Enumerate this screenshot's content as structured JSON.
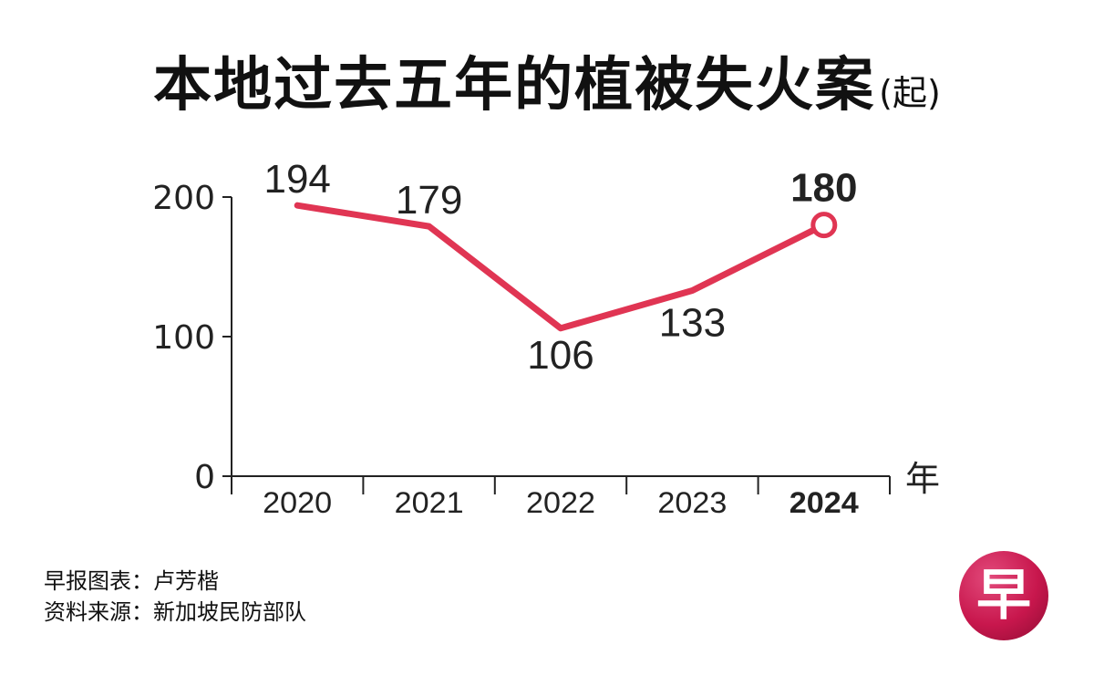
{
  "title": "本地过去五年的植被失火案",
  "title_unit": "(起)",
  "credits": {
    "chart_by": "早报图表：卢芳楷",
    "source": "资料来源：新加坡民防部队"
  },
  "logo": {
    "char": "早",
    "color": "#c8174d"
  },
  "colors": {
    "line": "#e03553",
    "axis": "#222222",
    "text": "#222222"
  },
  "chart_data": {
    "type": "line",
    "title": "本地过去五年的植被失火案",
    "xlabel": "年",
    "ylabel": "",
    "categories": [
      "2020",
      "2021",
      "2022",
      "2023",
      "2024"
    ],
    "series": [
      {
        "values": [
          194,
          179,
          106,
          133,
          180
        ],
        "labels": [
          "194",
          "179",
          "106",
          "133",
          "180"
        ]
      }
    ],
    "yticks": [
      0,
      100,
      200
    ],
    "ylim": [
      0,
      200
    ],
    "highlight": "2024",
    "grid": false
  }
}
